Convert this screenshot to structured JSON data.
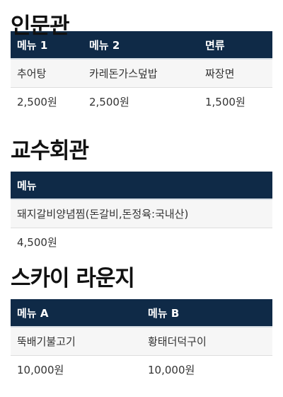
{
  "sections": [
    {
      "title": "인문관",
      "headers": [
        "메뉴 1",
        "메뉴 2",
        "면류"
      ],
      "rows": [
        [
          "추어탕",
          "카레돈가스덮밥",
          "짜장면"
        ],
        [
          "2,500원",
          "2,500원",
          "1,500원"
        ]
      ]
    },
    {
      "title": "교수회관",
      "headers": [
        "메뉴"
      ],
      "rows": [
        [
          "돼지갈비양념찜(돈갈비,돈정육:국내산)"
        ],
        [
          "4,500원"
        ]
      ]
    },
    {
      "title": "스카이 라운지",
      "headers": [
        "메뉴 A",
        "메뉴 B"
      ],
      "rows": [
        [
          "뚝배기불고기",
          "황태더덕구이"
        ],
        [
          "10,000원",
          "10,000원"
        ]
      ]
    }
  ]
}
